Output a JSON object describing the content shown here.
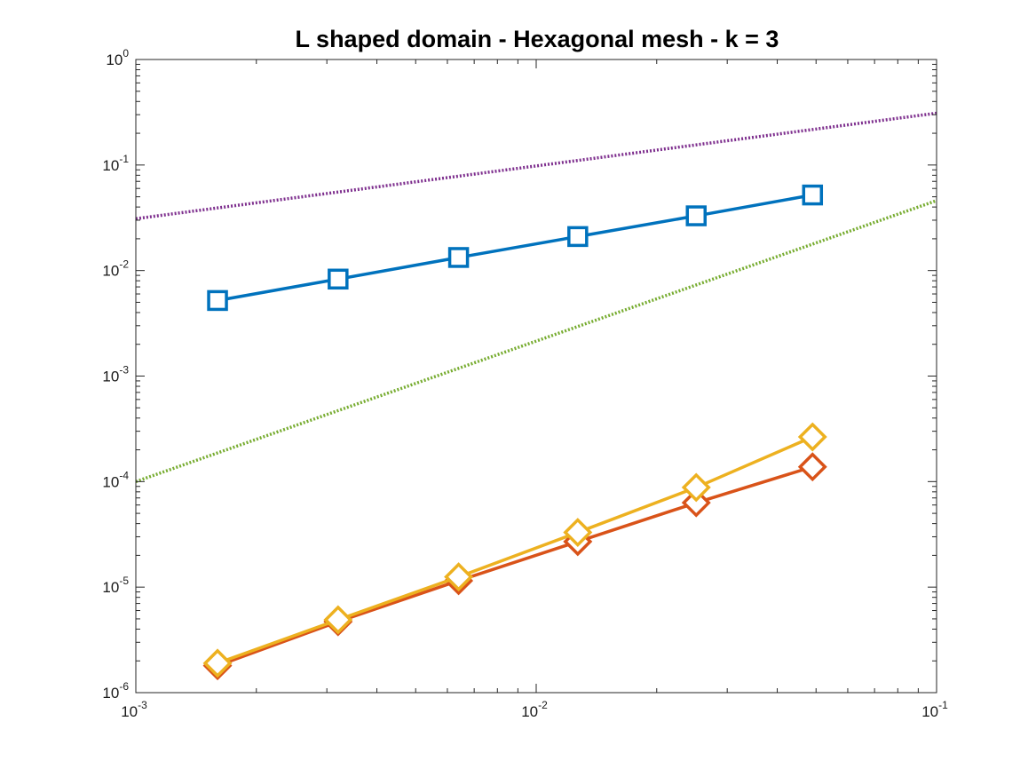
{
  "chart_data": {
    "type": "line",
    "title": "L shaped domain - Hexagonal mesh - k = 3",
    "xlabel": "",
    "ylabel": "",
    "xscale": "log",
    "yscale": "log",
    "xlim": [
      0.001,
      0.1
    ],
    "ylim": [
      1e-06,
      1
    ],
    "grid": false,
    "legend": "none",
    "x_ticks": [
      {
        "base": "10",
        "exp": "-3",
        "value": 0.001
      },
      {
        "base": "10",
        "exp": "-2",
        "value": 0.01
      },
      {
        "base": "10",
        "exp": "-1",
        "value": 0.1
      }
    ],
    "y_ticks": [
      {
        "base": "10",
        "exp": "-6",
        "value": 1e-06
      },
      {
        "base": "10",
        "exp": "-5",
        "value": 1e-05
      },
      {
        "base": "10",
        "exp": "-4",
        "value": 0.0001
      },
      {
        "base": "10",
        "exp": "-3",
        "value": 0.001
      },
      {
        "base": "10",
        "exp": "-2",
        "value": 0.01
      },
      {
        "base": "10",
        "exp": "-1",
        "value": 0.1
      },
      {
        "base": "10",
        "exp": "0",
        "value": 1
      }
    ],
    "series": [
      {
        "color": "#0072bd",
        "marker": "square",
        "style": "solid",
        "x": [
          0.0016,
          0.0032,
          0.0064,
          0.0127,
          0.0251,
          0.049
        ],
        "y": [
          0.0052,
          0.0083,
          0.0133,
          0.021,
          0.033,
          0.052
        ]
      },
      {
        "color": "#d95319",
        "marker": "diamond",
        "style": "solid",
        "x": [
          0.0016,
          0.0032,
          0.0064,
          0.0127,
          0.0251,
          0.049
        ],
        "y": [
          1.8e-06,
          4.7e-06,
          1.15e-05,
          2.7e-05,
          6.3e-05,
          0.000138
        ]
      },
      {
        "color": "#edb120",
        "marker": "diamond",
        "style": "solid",
        "x": [
          0.0016,
          0.0032,
          0.0064,
          0.0127,
          0.0251,
          0.049
        ],
        "y": [
          1.9e-06,
          4.9e-06,
          1.25e-05,
          3.3e-05,
          8.8e-05,
          0.000265
        ]
      },
      {
        "color": "#7e2f8e",
        "marker": "none",
        "style": "dotted",
        "x": [
          0.001,
          0.1
        ],
        "y": [
          0.031,
          0.31
        ]
      },
      {
        "color": "#77ac30",
        "marker": "none",
        "style": "dotted",
        "x": [
          0.001,
          0.1
        ],
        "y": [
          0.0001,
          0.046
        ]
      }
    ]
  }
}
